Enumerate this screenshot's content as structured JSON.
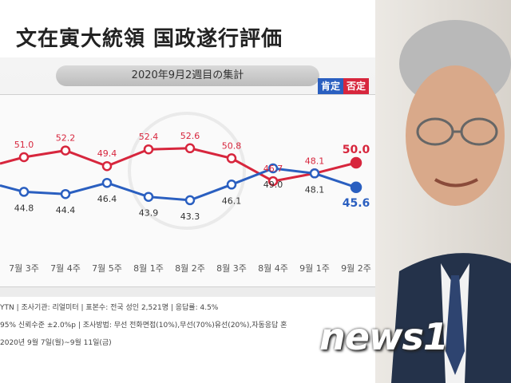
{
  "title": "文在寅大統領 国政遂行評価",
  "subtitle": "2020年9月2週目の集計",
  "legend": {
    "positive": "肯定",
    "negative": "否定"
  },
  "colors": {
    "positive": "#2a5fc0",
    "negative": "#d7263d"
  },
  "chart_data": {
    "type": "line",
    "categories": [
      "7월 3주",
      "7월 4주",
      "7월 5주",
      "8월 1주",
      "8월 2주",
      "8월 3주",
      "8월 4주",
      "9월 1주",
      "9월 2주"
    ],
    "series": [
      {
        "name": "否定",
        "values": [
          51.0,
          52.2,
          49.4,
          52.4,
          52.6,
          50.8,
          46.7,
          48.1,
          50.0
        ]
      },
      {
        "name": "肯定",
        "values": [
          44.8,
          44.4,
          46.4,
          43.9,
          43.3,
          46.1,
          49.0,
          48.1,
          45.6
        ]
      }
    ],
    "ylim": [
      38,
      58
    ],
    "grid": false,
    "legend_position": "top-right"
  },
  "footer": {
    "line1": "YTN  |  조사기관: 리얼미터  |  표본수: 전국 성인 2,521명  |  응답률: 4.5%",
    "line2": "95% 신뢰수준 ±2.0%p  |  조사방법: 무선 전화면접(10%),무선(70%)유선(20%),자동응답 혼",
    "line3": "2020년 9월 7일(월)~9월 11일(금)"
  },
  "watermark": "news1"
}
